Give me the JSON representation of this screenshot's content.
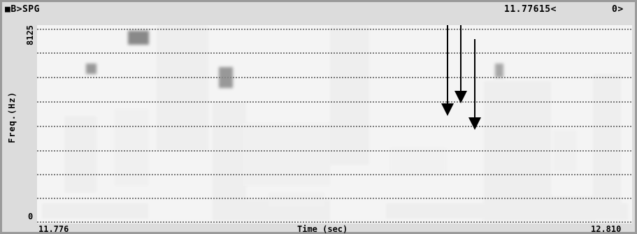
{
  "header": {
    "mode_label": "■B>SPG",
    "cursor_time": "11.77615<",
    "cursor_extra": "0>"
  },
  "axes": {
    "x_label": "Time (sec)",
    "x_start": "11.776",
    "x_end": "12.810",
    "y_label": "Freq.(Hz)",
    "y_top": "8125",
    "y_bottom": "0"
  },
  "colors": {
    "background": "#f4f4f4",
    "ink": "#1a1a1a",
    "frame": "#9a9a9a"
  },
  "annotations": {
    "arrow_count": 3
  }
}
